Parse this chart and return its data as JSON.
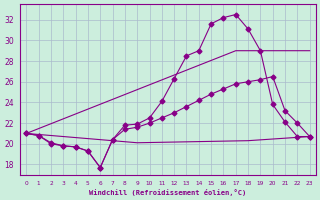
{
  "xlabel": "Windchill (Refroidissement éolien,°C)",
  "background_color": "#cceedd",
  "grid_color": "#aabbcc",
  "line_color": "#880088",
  "xlim": [
    -0.5,
    23.5
  ],
  "ylim": [
    17.0,
    33.5
  ],
  "yticks": [
    18,
    20,
    22,
    24,
    26,
    28,
    30,
    32
  ],
  "xtick_labels": [
    "0",
    "1",
    "2",
    "3",
    "4",
    "5",
    "6",
    "7",
    "8",
    "9",
    "10",
    "11",
    "12",
    "13",
    "14",
    "15",
    "16",
    "17",
    "18",
    "19",
    "20",
    "21",
    "22",
    "23"
  ],
  "series": [
    {
      "x": [
        0,
        1,
        2,
        3,
        4,
        5,
        6,
        7,
        8,
        9,
        10,
        11,
        12,
        13,
        14,
        15,
        16,
        17,
        18,
        19,
        20,
        21,
        22,
        23
      ],
      "y": [
        21.0,
        20.8,
        20.1,
        19.8,
        19.7,
        19.3,
        17.7,
        20.4,
        21.8,
        21.9,
        22.5,
        24.1,
        26.3,
        28.5,
        29.0,
        31.6,
        32.2,
        32.5,
        31.1,
        29.0,
        23.8,
        22.1,
        20.7,
        20.7
      ],
      "has_markers": true
    },
    {
      "x": [
        0,
        17,
        23
      ],
      "y": [
        21.0,
        29.0,
        29.0
      ],
      "has_markers": false
    },
    {
      "x": [
        0,
        1,
        2,
        3,
        4,
        5,
        6,
        7,
        8,
        9,
        10,
        11,
        12,
        13,
        14,
        15,
        16,
        17,
        18,
        19,
        20,
        21,
        22,
        23
      ],
      "y": [
        21.0,
        20.8,
        20.0,
        19.8,
        19.7,
        19.3,
        17.7,
        20.4,
        21.4,
        21.6,
        22.0,
        22.5,
        23.0,
        23.6,
        24.2,
        24.8,
        25.3,
        25.8,
        26.0,
        26.2,
        26.5,
        23.2,
        22.0,
        20.7
      ],
      "has_markers": true
    },
    {
      "x": [
        0,
        9,
        18,
        23
      ],
      "y": [
        21.0,
        20.1,
        20.3,
        20.7
      ],
      "has_markers": false
    }
  ]
}
